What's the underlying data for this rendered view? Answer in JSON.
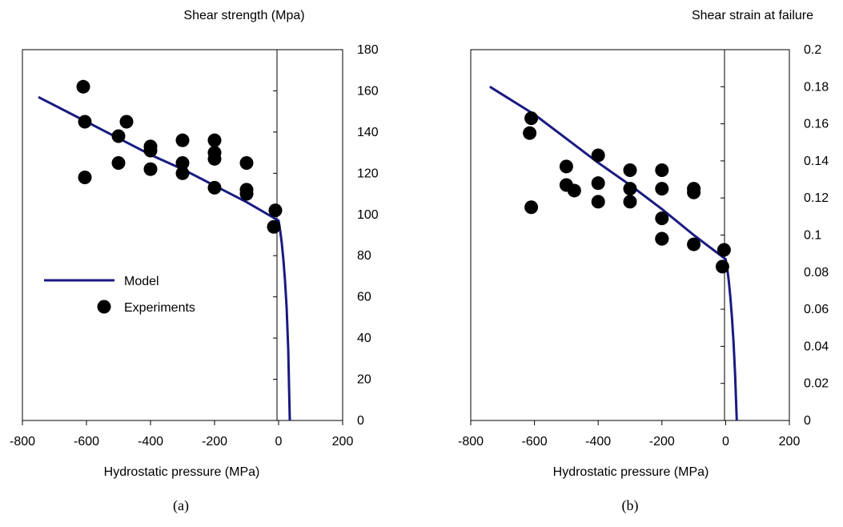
{
  "chart_data": [
    {
      "type": "scatter",
      "panel_label": "(a)",
      "xlabel": "Hydrostatic pressure (MPa)",
      "ylabel": "Shear strength (Mpa)",
      "xlim": [
        -800,
        200
      ],
      "ylim": [
        0,
        180
      ],
      "xticks": [
        -800,
        -600,
        -400,
        -200,
        0,
        200
      ],
      "yticks": [
        0,
        20,
        40,
        60,
        80,
        100,
        120,
        140,
        160,
        180
      ],
      "ytick_labels": [
        "0",
        "20",
        "40",
        "60",
        "80",
        "100",
        "120",
        "140",
        "160",
        "180"
      ],
      "grid": false,
      "legend_placement": "center-left",
      "series": [
        {
          "name": "Model",
          "kind": "line",
          "color": "#1a1a80",
          "x": [
            -750,
            -600,
            -500,
            -400,
            -300,
            -200,
            -100,
            0,
            5,
            10,
            15,
            20,
            25,
            30,
            35
          ],
          "y": [
            157,
            145,
            137,
            129,
            122,
            114,
            106,
            97,
            92,
            86,
            78,
            68,
            55,
            35,
            0
          ]
        },
        {
          "name": "Experiments",
          "kind": "scatter",
          "color": "#000000",
          "x": [
            -610,
            -605,
            -605,
            -500,
            -500,
            -475,
            -400,
            -400,
            -400,
            -300,
            -300,
            -300,
            -200,
            -200,
            -200,
            -200,
            -100,
            -100,
            -100,
            -10,
            -15
          ],
          "y": [
            162,
            145,
            118,
            138,
            125,
            145,
            133,
            131,
            122,
            136,
            125,
            120,
            136,
            130,
            127,
            113,
            125,
            112,
            110,
            102,
            94
          ]
        }
      ]
    },
    {
      "type": "scatter",
      "panel_label": "(b)",
      "xlabel": "Hydrostatic pressure (MPa)",
      "ylabel": "Shear strain at failure",
      "xlim": [
        -800,
        200
      ],
      "ylim": [
        0,
        0.2
      ],
      "xticks": [
        -800,
        -600,
        -400,
        -200,
        0,
        200
      ],
      "yticks": [
        0,
        0.02,
        0.04,
        0.06,
        0.08,
        0.1,
        0.12,
        0.14,
        0.16,
        0.18,
        0.2
      ],
      "ytick_labels": [
        "0",
        "0.02",
        "0.04",
        "0.06",
        "0.08",
        "0.1",
        "0.12",
        "0.14",
        "0.16",
        "0.18",
        "0.2"
      ],
      "grid": false,
      "series": [
        {
          "name": "Model",
          "kind": "line",
          "color": "#1a1a80",
          "x": [
            -740,
            -600,
            -500,
            -400,
            -300,
            -200,
            -100,
            0,
            5,
            10,
            15,
            20,
            25,
            30,
            35
          ],
          "y": [
            0.18,
            0.165,
            0.152,
            0.139,
            0.127,
            0.114,
            0.1,
            0.087,
            0.082,
            0.075,
            0.066,
            0.055,
            0.042,
            0.024,
            0
          ]
        },
        {
          "name": "Experiments",
          "kind": "scatter",
          "color": "#000000",
          "x": [
            -610,
            -615,
            -610,
            -500,
            -500,
            -475,
            -400,
            -400,
            -400,
            -300,
            -300,
            -300,
            -200,
            -200,
            -200,
            -200,
            -200,
            -100,
            -100,
            -100,
            -5,
            -10
          ],
          "y": [
            0.163,
            0.155,
            0.115,
            0.137,
            0.127,
            0.124,
            0.143,
            0.128,
            0.118,
            0.135,
            0.125,
            0.118,
            0.135,
            0.125,
            0.109,
            0.098,
            0.098,
            0.125,
            0.123,
            0.095,
            0.092,
            0.083
          ]
        }
      ]
    }
  ]
}
